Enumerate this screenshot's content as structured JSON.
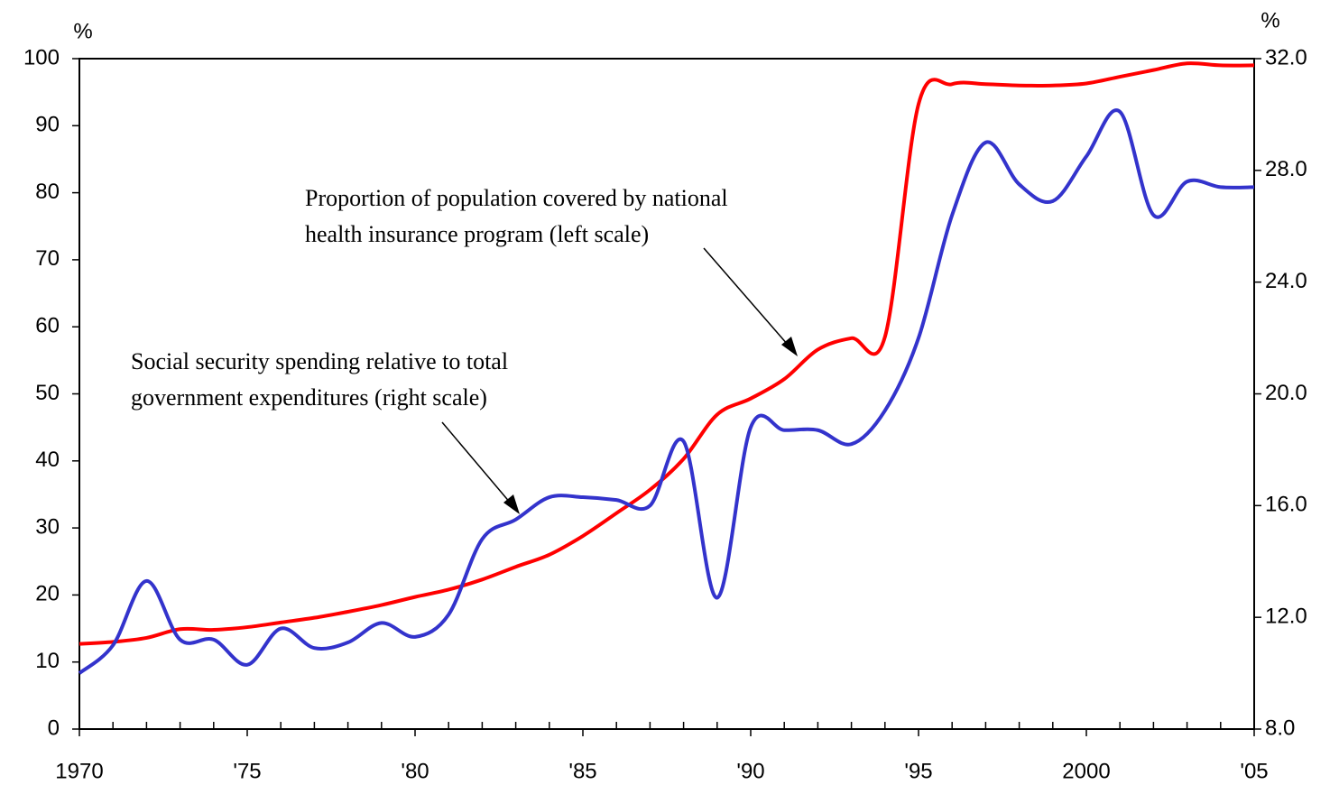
{
  "chart_data": {
    "type": "line",
    "y_axis_label": "%",
    "y2_axis_label": "%",
    "x": [
      1970,
      1971,
      1972,
      1973,
      1974,
      1975,
      1976,
      1977,
      1978,
      1979,
      1980,
      1981,
      1982,
      1983,
      1984,
      1985,
      1986,
      1987,
      1988,
      1989,
      1990,
      1991,
      1992,
      1993,
      1994,
      1995,
      1996,
      1997,
      1998,
      1999,
      2000,
      2001,
      2002,
      2003,
      2004,
      2005
    ],
    "series": [
      {
        "name": "Proportion of population covered by national health insurance program (left scale)",
        "color": "#ff0000",
        "axis": "y",
        "values": [
          12.7,
          13.0,
          13.6,
          14.9,
          14.8,
          15.2,
          15.9,
          16.6,
          17.5,
          18.5,
          19.7,
          20.8,
          22.3,
          24.2,
          26.0,
          28.8,
          32.2,
          35.7,
          40.3,
          46.9,
          49.3,
          52.2,
          56.6,
          58.3,
          58.5,
          93.2,
          96.2,
          96.2,
          96.0,
          96.0,
          96.3,
          97.3,
          98.3,
          99.3,
          99.0,
          99.0
        ]
      },
      {
        "name": "Social security spending relative to total government expenditures (right scale)",
        "color": "#3333cc",
        "axis": "y2",
        "values": [
          10.0,
          11.0,
          13.3,
          11.2,
          11.2,
          10.3,
          11.6,
          10.9,
          11.1,
          11.8,
          11.3,
          12.1,
          14.8,
          15.5,
          16.3,
          16.3,
          16.2,
          16.0,
          18.3,
          12.7,
          18.8,
          18.7,
          18.7,
          18.2,
          19.4,
          22.0,
          26.4,
          29.0,
          27.5,
          26.9,
          28.5,
          30.1,
          26.4,
          27.6,
          27.4,
          27.4
        ]
      }
    ],
    "annotations": [
      [
        "Proportion of population covered by national",
        "health insurance program (left scale)"
      ],
      [
        "Social security spending relative to total",
        "government expenditures (right scale)"
      ]
    ],
    "xlim": [
      1970,
      2005
    ],
    "xticks": [
      1970,
      {
        "value": 1975,
        "label": "'75"
      },
      {
        "value": 1980,
        "label": "'80"
      },
      {
        "value": 1985,
        "label": "'85"
      },
      {
        "value": 1990,
        "label": "'90"
      },
      {
        "value": 1995,
        "label": "'95"
      },
      2000,
      {
        "value": 2005,
        "label": "'05"
      }
    ],
    "xminorticks": [
      1971,
      1972,
      1973,
      1974,
      1976,
      1977,
      1978,
      1979,
      1981,
      1982,
      1983,
      1984,
      1986,
      1987,
      1988,
      1989,
      1991,
      1992,
      1993,
      1994,
      1996,
      1997,
      1998,
      1999,
      2001,
      2002,
      2003,
      2004
    ],
    "ylim": [
      0,
      100
    ],
    "yticks": [
      0,
      10,
      20,
      30,
      40,
      50,
      60,
      70,
      80,
      90,
      100
    ],
    "y2lim": [
      8,
      32
    ],
    "y2ticks": [
      {
        "value": 8,
        "label": "8.0"
      },
      {
        "value": 12,
        "label": "12.0"
      },
      {
        "value": 16,
        "label": "16.0"
      },
      {
        "value": 20,
        "label": "20.0"
      },
      {
        "value": 24,
        "label": "24.0"
      },
      {
        "value": 28,
        "label": "28.0"
      },
      {
        "value": 32,
        "label": "32.0"
      }
    ]
  }
}
